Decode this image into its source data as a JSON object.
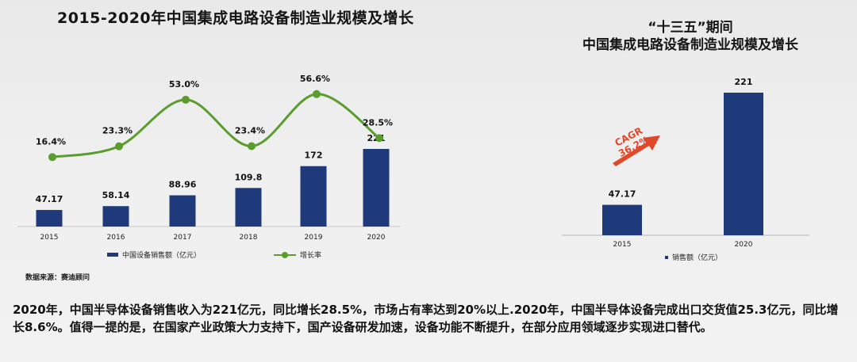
{
  "left_title": "2015-2020年中国集成电路设备制造业规模及增长",
  "right_title_line1": "“十三五”期间",
  "right_title_line2": "中国集成电路设备制造业规模及增长",
  "source": "数据来源：赛迪顾问",
  "body_text": "2020年，中国半导体设备销售收入为221亿元，同比增长28.5%，市场占有率达到20%以上.2020年，中国半导体设备完成出口交货值25.3亿元，同比增长8.6%。值得一提的是，在国家产业政策大力支持下，国产设备研发加速，设备功能不断提升，在部分应用领域逐步实现进口替代。",
  "colors": {
    "bar": "#1f3a7a",
    "line": "#5a9c2e",
    "arrow": "#e0482a"
  },
  "chart_data": [
    {
      "type": "bar+line",
      "categories": [
        "2015",
        "2016",
        "2017",
        "2018",
        "2019",
        "2020"
      ],
      "series": [
        {
          "name": "中国设备销售额（亿元）",
          "type": "bar",
          "values": [
            47.17,
            58.14,
            88.96,
            109.8,
            172,
            221
          ],
          "labels": [
            "47.17",
            "58.14",
            "88.96",
            "109.8",
            "172",
            "221"
          ]
        },
        {
          "name": "增长率",
          "type": "line",
          "values": [
            16.4,
            23.3,
            53.0,
            23.4,
            56.6,
            28.5
          ],
          "labels": [
            "16.4%",
            "23.3%",
            "53.0%",
            "23.4%",
            "56.6%",
            "28.5%"
          ]
        }
      ],
      "legend_position": "bottom"
    },
    {
      "type": "bar",
      "categories": [
        "2015",
        "2020"
      ],
      "series": [
        {
          "name": "销售额（亿元）",
          "values": [
            47.17,
            221
          ],
          "labels": [
            "47.17",
            "221"
          ]
        }
      ],
      "annotation": "CAGR 36.2%",
      "annotation_lines": [
        "CAGR",
        "36.2%"
      ],
      "legend_position": "bottom"
    }
  ]
}
